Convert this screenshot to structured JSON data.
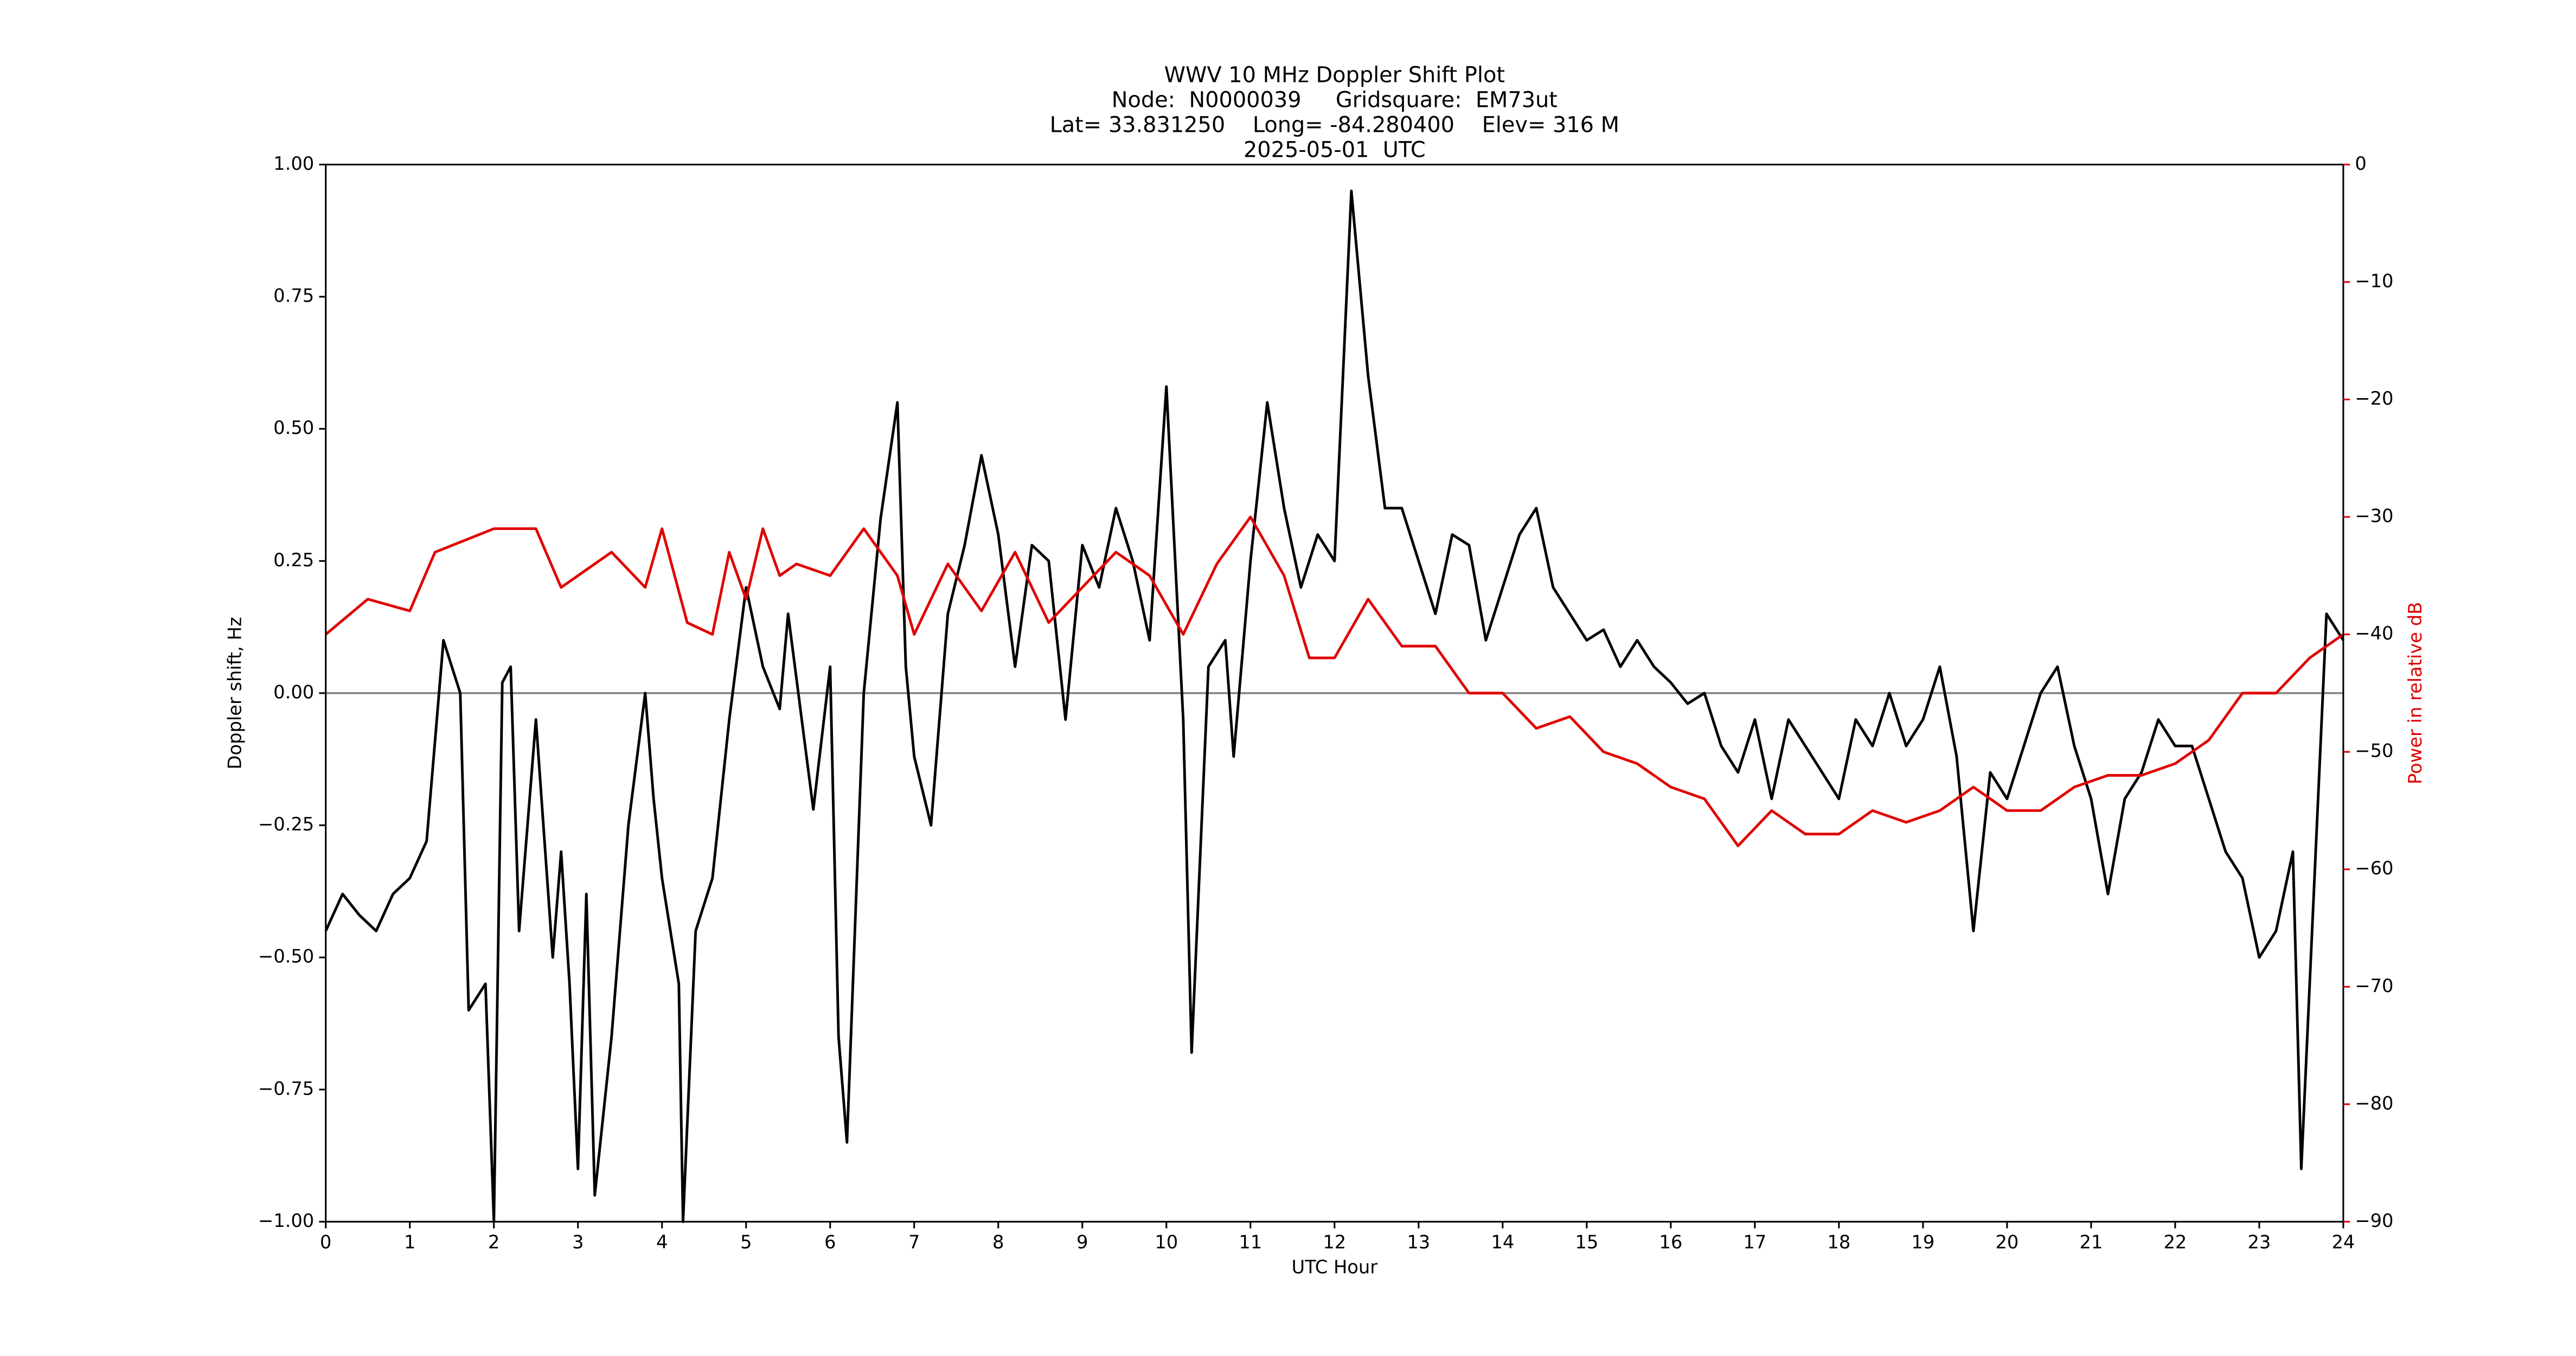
{
  "chart_data": {
    "type": "line",
    "title": [
      "WWV 10 MHz Doppler Shift Plot",
      "Node:  N0000039     Gridsquare:  EM73ut",
      "Lat= 33.831250    Long= -84.280400    Elev= 316 M",
      "2025-05-01  UTC"
    ],
    "xlabel": "UTC Hour",
    "ylabel": "Doppler shift, Hz",
    "y2label": "Power in relative dB",
    "y2color": "#e00000",
    "xlim": [
      0,
      24
    ],
    "xticks": [
      0,
      1,
      2,
      3,
      4,
      5,
      6,
      7,
      8,
      9,
      10,
      11,
      12,
      13,
      14,
      15,
      16,
      17,
      18,
      19,
      20,
      21,
      22,
      23,
      24
    ],
    "ylim": [
      -1,
      1
    ],
    "yticks": [
      {
        "value": -1,
        "label": "−1.00"
      },
      {
        "value": -0.75,
        "label": "−0.75"
      },
      {
        "value": -0.5,
        "label": "−0.50"
      },
      {
        "value": -0.25,
        "label": "−0.25"
      },
      {
        "value": 0,
        "label": "0.00"
      },
      {
        "value": 0.25,
        "label": "0.25"
      },
      {
        "value": 0.5,
        "label": "0.50"
      },
      {
        "value": 0.75,
        "label": "0.75"
      },
      {
        "value": 1,
        "label": "1.00"
      }
    ],
    "y2lim": [
      -90,
      0
    ],
    "y2ticks": [
      {
        "value": -90,
        "label": "−90"
      },
      {
        "value": -80,
        "label": "−80"
      },
      {
        "value": -70,
        "label": "−70"
      },
      {
        "value": -60,
        "label": "−60"
      },
      {
        "value": -50,
        "label": "−50"
      },
      {
        "value": -40,
        "label": "−40"
      },
      {
        "value": -30,
        "label": "−30"
      },
      {
        "value": -20,
        "label": "−20"
      },
      {
        "value": -10,
        "label": "−10"
      },
      0
    ],
    "hline": 0,
    "series": [
      {
        "color": "#000000",
        "axis": "y",
        "x": [
          0,
          0.2,
          0.4,
          0.6,
          0.8,
          1.0,
          1.2,
          1.4,
          1.6,
          1.7,
          1.9,
          2.0,
          2.1,
          2.2,
          2.3,
          2.5,
          2.7,
          2.8,
          2.9,
          3.0,
          3.1,
          3.2,
          3.4,
          3.6,
          3.8,
          3.9,
          4.0,
          4.2,
          4.25,
          4.4,
          4.6,
          4.8,
          5.0,
          5.2,
          5.4,
          5.5,
          5.8,
          6.0,
          6.1,
          6.2,
          6.4,
          6.6,
          6.8,
          6.9,
          7.0,
          7.2,
          7.4,
          7.6,
          7.8,
          8.0,
          8.2,
          8.4,
          8.6,
          8.8,
          9.0,
          9.2,
          9.4,
          9.6,
          9.8,
          10.0,
          10.2,
          10.3,
          10.5,
          10.7,
          10.8,
          11.0,
          11.2,
          11.4,
          11.6,
          11.8,
          12.0,
          12.2,
          12.4,
          12.6,
          12.8,
          13.0,
          13.2,
          13.4,
          13.6,
          13.8,
          14.0,
          14.2,
          14.4,
          14.6,
          14.8,
          15.0,
          15.2,
          15.4,
          15.6,
          15.8,
          16.0,
          16.2,
          16.4,
          16.6,
          16.8,
          17.0,
          17.2,
          17.4,
          17.6,
          17.8,
          18.0,
          18.2,
          18.4,
          18.6,
          18.8,
          19.0,
          19.2,
          19.4,
          19.6,
          19.8,
          20.0,
          20.2,
          20.4,
          20.6,
          20.8,
          21.0,
          21.2,
          21.4,
          21.6,
          21.8,
          22.0,
          22.2,
          22.4,
          22.6,
          22.8,
          23.0,
          23.2,
          23.4,
          23.5,
          23.7,
          23.8,
          24.0
        ],
        "values": [
          -0.45,
          -0.38,
          -0.42,
          -0.45,
          -0.38,
          -0.35,
          -0.28,
          0.1,
          0.0,
          -0.6,
          -0.55,
          -1.0,
          0.02,
          0.05,
          -0.45,
          -0.05,
          -0.5,
          -0.3,
          -0.55,
          -0.9,
          -0.38,
          -0.95,
          -0.65,
          -0.25,
          0.0,
          -0.2,
          -0.35,
          -0.55,
          -1.0,
          -0.45,
          -0.35,
          -0.05,
          0.2,
          0.05,
          -0.03,
          0.15,
          -0.22,
          0.05,
          -0.65,
          -0.85,
          0.0,
          0.33,
          0.55,
          0.05,
          -0.12,
          -0.25,
          0.15,
          0.28,
          0.45,
          0.3,
          0.05,
          0.28,
          0.25,
          -0.05,
          0.28,
          0.2,
          0.35,
          0.25,
          0.1,
          0.58,
          -0.05,
          -0.68,
          0.05,
          0.1,
          -0.12,
          0.25,
          0.55,
          0.35,
          0.2,
          0.3,
          0.25,
          0.95,
          0.6,
          0.35,
          0.35,
          0.25,
          0.15,
          0.3,
          0.28,
          0.1,
          0.2,
          0.3,
          0.35,
          0.2,
          0.15,
          0.1,
          0.12,
          0.05,
          0.1,
          0.05,
          0.02,
          -0.02,
          0.0,
          -0.1,
          -0.15,
          -0.05,
          -0.2,
          -0.05,
          -0.1,
          -0.15,
          -0.2,
          -0.05,
          -0.1,
          0.0,
          -0.1,
          -0.05,
          0.05,
          -0.12,
          -0.45,
          -0.15,
          -0.2,
          -0.1,
          0.0,
          0.05,
          -0.1,
          -0.2,
          -0.38,
          -0.2,
          -0.15,
          -0.05,
          -0.1,
          -0.1,
          -0.2,
          -0.3,
          -0.35,
          -0.5,
          -0.45,
          -0.3,
          -0.9,
          -0.2,
          0.15,
          0.1
        ]
      },
      {
        "color": "#e00000",
        "axis": "y2",
        "x": [
          0,
          0.5,
          1.0,
          1.3,
          2.0,
          2.5,
          2.8,
          3.0,
          3.4,
          3.8,
          4.0,
          4.3,
          4.6,
          4.8,
          5.0,
          5.2,
          5.4,
          5.6,
          6.0,
          6.4,
          6.8,
          7.0,
          7.4,
          7.8,
          8.2,
          8.6,
          9.0,
          9.4,
          9.8,
          10.2,
          10.6,
          11.0,
          11.4,
          11.7,
          12.0,
          12.4,
          12.8,
          13.2,
          13.6,
          14.0,
          14.4,
          14.8,
          15.2,
          15.6,
          16.0,
          16.4,
          16.8,
          17.2,
          17.6,
          18.0,
          18.4,
          18.8,
          19.2,
          19.6,
          20.0,
          20.4,
          20.8,
          21.2,
          21.6,
          22.0,
          22.4,
          22.8,
          23.2,
          23.6,
          24.0
        ],
        "values": [
          -40,
          -37,
          -38,
          -33,
          -31,
          -31,
          -36,
          -35,
          -33,
          -36,
          -31,
          -39,
          -40,
          -33,
          -37,
          -31,
          -35,
          -34,
          -35,
          -31,
          -35,
          -40,
          -34,
          -38,
          -33,
          -39,
          -36,
          -33,
          -35,
          -40,
          -34,
          -30,
          -35,
          -42,
          -42,
          -37,
          -41,
          -41,
          -45,
          -45,
          -48,
          -47,
          -50,
          -51,
          -53,
          -54,
          -58,
          -55,
          -57,
          -57,
          -55,
          -56,
          -55,
          -53,
          -55,
          -55,
          -53,
          -52,
          -52,
          -51,
          -49,
          -45,
          -45,
          -42,
          -40
        ]
      }
    ]
  }
}
